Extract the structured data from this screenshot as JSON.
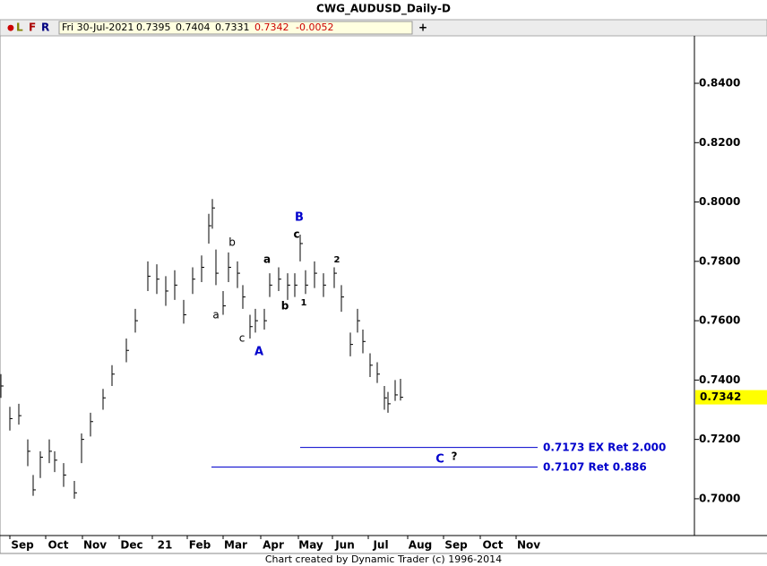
{
  "chart_data": {
    "type": "ohlc",
    "title": "CWG_AUDUSD_Daily-D",
    "toolbar": [
      "●",
      "L",
      "F",
      "R",
      "+"
    ],
    "info": {
      "date": "Fri 30-Jul-2021",
      "open": 0.7395,
      "high": 0.7404,
      "low": 0.7331,
      "close": 0.7342,
      "change": -0.0052
    },
    "last_price": {
      "value": 0.7342,
      "label": "0.7342"
    },
    "footer": "Chart created by Dynamic Trader  (c) 1996-2014",
    "color": "#000000",
    "x": [
      0,
      5,
      10,
      15,
      18,
      22,
      27,
      30,
      35,
      41,
      45,
      50,
      57,
      62,
      70,
      75,
      82,
      87,
      92,
      97,
      102,
      107,
      112,
      116,
      118,
      120,
      124,
      127,
      132,
      135,
      139,
      142,
      147,
      150,
      155,
      160,
      164,
      167,
      170,
      175,
      180,
      186,
      190,
      195,
      199,
      202,
      206,
      210,
      214,
      216,
      220,
      223
    ],
    "high": [
      0.742,
      0.731,
      0.732,
      0.72,
      0.708,
      0.716,
      0.72,
      0.716,
      0.712,
      0.706,
      0.722,
      0.729,
      0.737,
      0.745,
      0.754,
      0.764,
      0.78,
      0.779,
      0.775,
      0.777,
      0.767,
      0.778,
      0.782,
      0.796,
      0.801,
      0.784,
      0.77,
      0.783,
      0.78,
      0.772,
      0.762,
      0.764,
      0.764,
      0.776,
      0.778,
      0.776,
      0.776,
      0.789,
      0.777,
      0.78,
      0.776,
      0.778,
      0.772,
      0.756,
      0.764,
      0.757,
      0.749,
      0.746,
      0.738,
      0.736,
      0.74,
      0.7404
    ],
    "low": [
      0.734,
      0.723,
      0.725,
      0.711,
      0.701,
      0.707,
      0.712,
      0.709,
      0.704,
      0.7,
      0.712,
      0.721,
      0.73,
      0.738,
      0.746,
      0.756,
      0.77,
      0.769,
      0.765,
      0.767,
      0.759,
      0.769,
      0.773,
      0.786,
      0.791,
      0.772,
      0.762,
      0.773,
      0.771,
      0.764,
      0.754,
      0.756,
      0.757,
      0.768,
      0.77,
      0.767,
      0.768,
      0.78,
      0.769,
      0.771,
      0.768,
      0.771,
      0.763,
      0.748,
      0.756,
      0.749,
      0.741,
      0.739,
      0.73,
      0.729,
      0.733,
      0.7331
    ],
    "close": [
      0.738,
      0.727,
      0.728,
      0.716,
      0.703,
      0.714,
      0.716,
      0.713,
      0.708,
      0.702,
      0.72,
      0.726,
      0.734,
      0.742,
      0.75,
      0.76,
      0.775,
      0.774,
      0.77,
      0.772,
      0.762,
      0.774,
      0.778,
      0.792,
      0.798,
      0.776,
      0.765,
      0.778,
      0.776,
      0.768,
      0.758,
      0.76,
      0.76,
      0.772,
      0.774,
      0.772,
      0.772,
      0.786,
      0.772,
      0.776,
      0.772,
      0.776,
      0.768,
      0.752,
      0.76,
      0.753,
      0.745,
      0.742,
      0.734,
      0.732,
      0.735,
      0.7342
    ],
    "xlim": [
      0,
      387
    ],
    "xticks": [
      {
        "value": 8,
        "label": "Sep"
      },
      {
        "value": 28,
        "label": "Oct"
      },
      {
        "value": 48.5,
        "label": "Nov"
      },
      {
        "value": 69,
        "label": "Dec"
      },
      {
        "value": 87.5,
        "label": "21"
      },
      {
        "value": 107,
        "label": "Feb"
      },
      {
        "value": 127,
        "label": "Mar"
      },
      {
        "value": 148,
        "label": "Apr"
      },
      {
        "value": 169,
        "label": "May"
      },
      {
        "value": 188,
        "label": "Jun"
      },
      {
        "value": 208,
        "label": "Jul"
      },
      {
        "value": 230,
        "label": "Aug"
      },
      {
        "value": 250,
        "label": "Sep"
      },
      {
        "value": 270.5,
        "label": "Oct"
      },
      {
        "value": 290.5,
        "label": "Nov"
      }
    ],
    "ylim": [
      0.6876,
      0.856
    ],
    "yticks": [
      {
        "value": 0.7,
        "label": "0.7000"
      },
      {
        "value": 0.72,
        "label": "0.7200"
      },
      {
        "value": 0.74,
        "label": "0.7400"
      },
      {
        "value": 0.76,
        "label": "0.7600"
      },
      {
        "value": 0.78,
        "label": "0.7800"
      },
      {
        "value": 0.8,
        "label": "0.8000"
      },
      {
        "value": 0.82,
        "label": "0.8200"
      },
      {
        "value": 0.84,
        "label": "0.8400"
      }
    ],
    "levels": [
      {
        "value": 0.7173,
        "label": "EX Ret 2.000",
        "color": "#0000cc"
      },
      {
        "value": 0.7107,
        "label": "Ret 0.886",
        "color": "#0000cc"
      }
    ],
    "wave_labels": [
      "A",
      "B",
      "a",
      "b",
      "c",
      "a",
      "b",
      "c",
      "1",
      "2",
      "C",
      "?"
    ]
  }
}
